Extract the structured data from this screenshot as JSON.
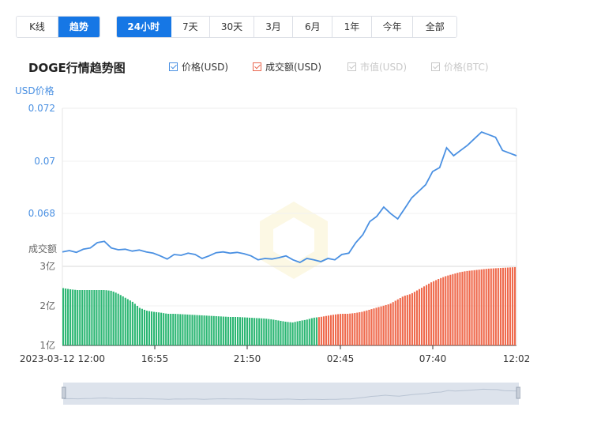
{
  "tabs_left": [
    {
      "label": "K线",
      "active": false
    },
    {
      "label": "趋势",
      "active": true
    }
  ],
  "tabs_range": [
    {
      "label": "24小时",
      "active": true
    },
    {
      "label": "7天",
      "active": false
    },
    {
      "label": "30天",
      "active": false
    },
    {
      "label": "3月",
      "active": false
    },
    {
      "label": "6月",
      "active": false
    },
    {
      "label": "1年",
      "active": false
    },
    {
      "label": "今年",
      "active": false
    },
    {
      "label": "全部",
      "active": false
    }
  ],
  "legend": [
    {
      "label": "价格(USD)",
      "checked": true,
      "color": "#4a90e2"
    },
    {
      "label": "成交额(USD)",
      "checked": true,
      "color": "#e9674f"
    },
    {
      "label": "市值(USD)",
      "checked": false,
      "color": "#c8c8c8"
    },
    {
      "label": "价格(BTC)",
      "checked": false,
      "color": "#c8c8c8"
    }
  ],
  "chart_data": {
    "type": "line",
    "title": "DOGE行情趋势图",
    "price_axis_title": "USD价格",
    "volume_axis_title": "成交额",
    "price_ylim": [
      0.066,
      0.072
    ],
    "price_ticks": [
      "0.072",
      "0.07",
      "0.068"
    ],
    "volume_ticks": [
      "3亿",
      "2亿",
      "1亿"
    ],
    "volume_ylim": [
      1,
      3
    ],
    "x_tick_labels": [
      "2023-03-12 12:00",
      "16:55",
      "21:50",
      "02:45",
      "07:40",
      "12:02"
    ],
    "colors": {
      "price": "#4a90e2",
      "volume_down": "#2bb673",
      "volume_up": "#ef6a4d"
    },
    "series": [
      {
        "name": "价格(USD)",
        "values": [
          0.06655,
          0.0666,
          0.06653,
          0.06665,
          0.0667,
          0.0669,
          0.06695,
          0.0667,
          0.06663,
          0.06665,
          0.06658,
          0.06662,
          0.06655,
          0.0665,
          0.0664,
          0.06628,
          0.06645,
          0.06642,
          0.0665,
          0.06645,
          0.0663,
          0.0664,
          0.06652,
          0.06655,
          0.0665,
          0.06653,
          0.06648,
          0.0664,
          0.06625,
          0.0663,
          0.06628,
          0.06633,
          0.0664,
          0.06625,
          0.06615,
          0.0663,
          0.06625,
          0.06618,
          0.0663,
          0.06625,
          0.06645,
          0.0665,
          0.0669,
          0.0672,
          0.0677,
          0.0679,
          0.06825,
          0.068,
          0.0678,
          0.0682,
          0.0686,
          0.06885,
          0.0691,
          0.0696,
          0.06975,
          0.0705,
          0.0702,
          0.0704,
          0.0706,
          0.07085,
          0.0711,
          0.071,
          0.0709,
          0.0704,
          0.0703,
          0.0702
        ]
      },
      {
        "name": "成交额(USD)",
        "values": [
          2.45,
          2.42,
          2.4,
          2.4,
          2.4,
          2.4,
          2.4,
          2.38,
          2.3,
          2.2,
          2.1,
          1.95,
          1.88,
          1.85,
          1.83,
          1.8,
          1.8,
          1.79,
          1.78,
          1.77,
          1.76,
          1.75,
          1.74,
          1.73,
          1.72,
          1.72,
          1.71,
          1.7,
          1.69,
          1.68,
          1.66,
          1.63,
          1.6,
          1.58,
          1.62,
          1.65,
          1.7,
          1.72,
          1.75,
          1.78,
          1.8,
          1.8,
          1.82,
          1.85,
          1.9,
          1.95,
          2.0,
          2.05,
          2.15,
          2.25,
          2.3,
          2.4,
          2.5,
          2.6,
          2.68,
          2.75,
          2.8,
          2.85,
          2.88,
          2.9,
          2.92,
          2.94,
          2.95,
          2.96,
          2.97,
          2.98
        ]
      }
    ]
  }
}
